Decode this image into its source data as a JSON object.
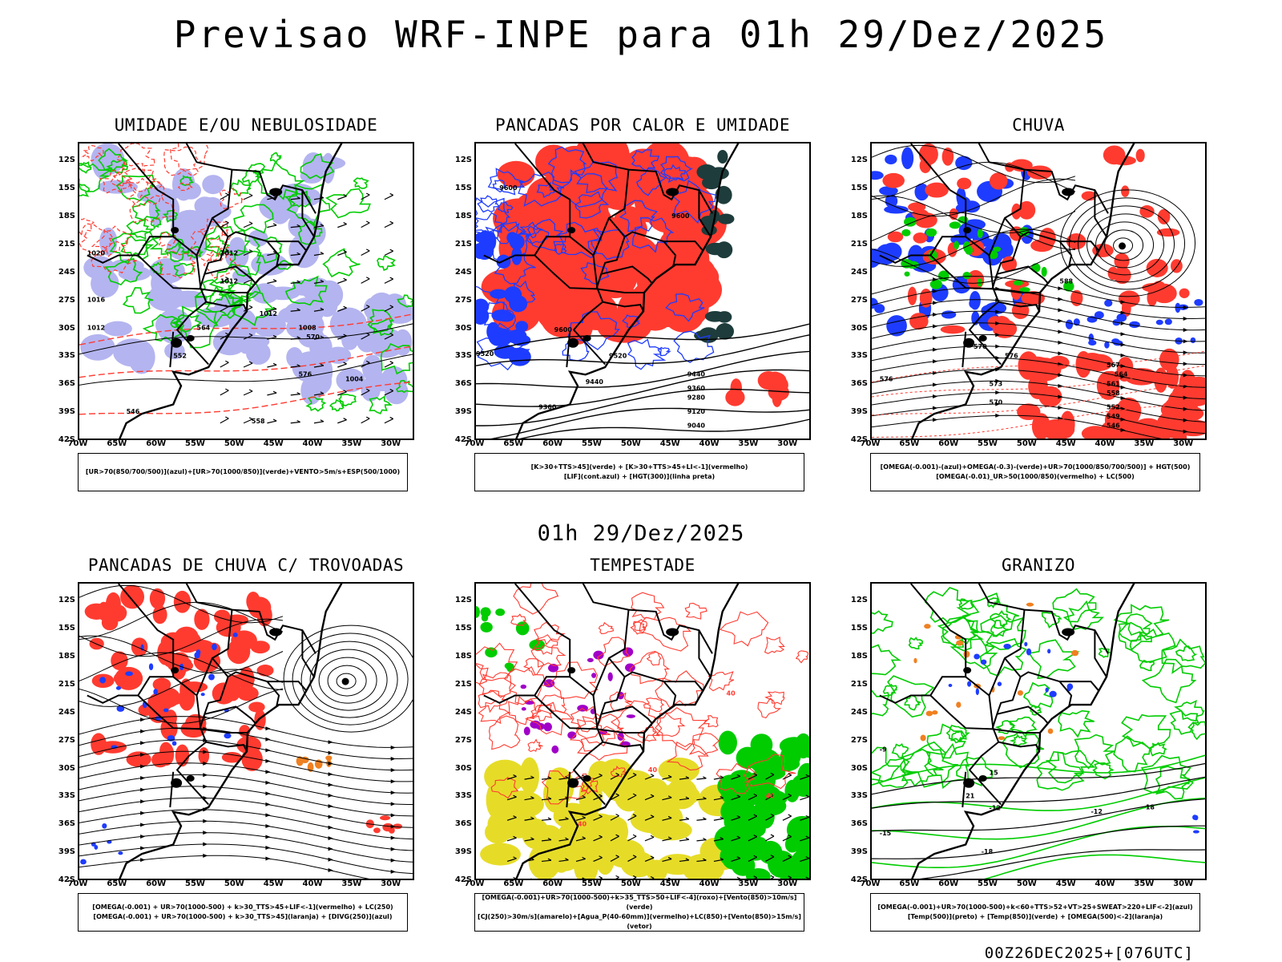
{
  "title": "Previsao WRF-INPE  para 01h 29/Dez/2025",
  "mid_title": "01h 29/Dez/2025",
  "footer": "00Z26DEC2025+[076UTC]",
  "axes": {
    "lat_labels": [
      "12S",
      "15S",
      "18S",
      "21S",
      "24S",
      "27S",
      "30S",
      "33S",
      "36S",
      "39S",
      "42S"
    ],
    "lon_labels": [
      "70W",
      "65W",
      "60W",
      "55W",
      "50W",
      "45W",
      "40W",
      "35W",
      "30W"
    ],
    "lat_range": [
      -42,
      -10
    ],
    "lon_range": [
      -70,
      -27
    ]
  },
  "colors": {
    "red": "#ff3b30",
    "green": "#00cc00",
    "blue": "#1e3cff",
    "lavender": "#b4b4f0",
    "yellow": "#e6dc28",
    "purple": "#a000c8",
    "orange": "#f08020",
    "darkteal": "#1e3c3c"
  },
  "chart_data": [
    {
      "type": "heatmap",
      "title": "UMIDADE E/OU NEBULOSIDADE",
      "legend": [
        "[UR>70(850/700/500)](azul)+[UR>70(1000/850)](verde)+VENTO>5m/s+ESP(500/1000)"
      ],
      "contour_labels": [
        "1012",
        "1012",
        "1020",
        "1016",
        "1012",
        "1012",
        "1008",
        "1004",
        "570",
        "576",
        "558",
        "552",
        "546",
        "564"
      ]
    },
    {
      "type": "heatmap",
      "title": "PANCADAS POR CALOR E UMIDADE",
      "legend": [
        "[K>30+TTS>45](verde) + [K>30+TTS>45+LI<-1](vermelho)",
        "[LIF](cont.azul) + [HGT(300)](linha preta)"
      ],
      "contour_labels": [
        "9600",
        "9600",
        "9600",
        "9520",
        "9520",
        "9440",
        "9440",
        "9360",
        "9280",
        "9360",
        "9120",
        "9040"
      ]
    },
    {
      "type": "heatmap",
      "title": "CHUVA",
      "legend": [
        "[OMEGA(-0.001)-(azul)+OMEGA(-0.3)-(verde)+UR>70(1000/850/700/500)] + HGT(500)",
        "[OMEGA(-0.01)_UR>50(1000/850)(vermelho) + LC(500)"
      ],
      "contour_labels": [
        "588",
        "576",
        "573",
        "570",
        "567",
        "564",
        "561",
        "558",
        "552",
        "549",
        "546",
        "570",
        "576"
      ]
    },
    {
      "type": "heatmap",
      "title": "PANCADAS DE CHUVA C/ TROVOADAS",
      "legend": [
        "[OMEGA(-0.001) + UR>70(1000-500) + k>30_TTS>45+LIF<-1](vermelho) + LC(250)",
        "[OMEGA(-0.001) + UR>70(1000-500) + k>30_TTS>45](laranja) + [DIVG(250)](azul)"
      ],
      "contour_labels": []
    },
    {
      "type": "heatmap",
      "title": "TEMPESTADE",
      "legend": [
        "[OMEGA(-0.001)+UR>70(1000-500)+k>35_TTS>50+LIF<-4](roxo)+[Vento(850)>10m/s](verde)",
        "[CJ(250)>30m/s](amarelo)+[Agua_P(40-60mm)](vermelho)+LC(850)+[Vento(850)>15m/s](vetor)"
      ],
      "contour_labels": [
        "40",
        "40",
        "40",
        "40"
      ]
    },
    {
      "type": "heatmap",
      "title": "GRANIZO",
      "legend": [
        "[OMEGA(-0.001)+UR>70(1000-500)+k<60+TTS>52+VT>25+SWEAT>220+LIF<-2](azul)",
        "[Temp(500)](preto) + [Temp(850)](verde) + [OMEGA(500)<-2](laranja)"
      ],
      "contour_labels": [
        "-9",
        "-12",
        "-15",
        "-12",
        "-18",
        "15",
        "18",
        "21"
      ]
    }
  ]
}
